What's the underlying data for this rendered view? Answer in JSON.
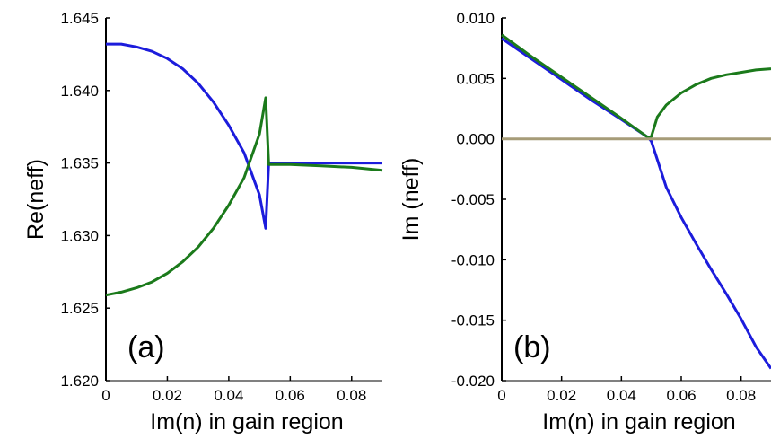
{
  "colors": {
    "series_blue": "#1c1cdc",
    "series_green": "#1b7a1b",
    "zero_line": "#a69c78",
    "axis": "#000000"
  },
  "chart_data": [
    {
      "type": "line",
      "panel_label": "(a)",
      "xlabel": "Im(n) in gain region",
      "ylabel": "Re(neff)",
      "xlim": [
        0,
        0.09
      ],
      "ylim": [
        1.62,
        1.645
      ],
      "xticks": [
        "0",
        "0.02",
        "0.04",
        "0.06",
        "0.08"
      ],
      "xtick_values": [
        0,
        0.02,
        0.04,
        0.06,
        0.08
      ],
      "yticks": [
        "1.620",
        "1.625",
        "1.630",
        "1.635",
        "1.640",
        "1.645"
      ],
      "ytick_values": [
        1.62,
        1.625,
        1.63,
        1.635,
        1.64,
        1.645
      ],
      "series": [
        {
          "color_key": "series_blue",
          "x": [
            0,
            0.005,
            0.01,
            0.015,
            0.02,
            0.025,
            0.03,
            0.035,
            0.04,
            0.045,
            0.05,
            0.052,
            0.053,
            0.06,
            0.07,
            0.08,
            0.09
          ],
          "y": [
            1.6432,
            1.6432,
            1.643,
            1.6427,
            1.6422,
            1.6415,
            1.6405,
            1.6392,
            1.6376,
            1.6357,
            1.6328,
            1.6305,
            1.635,
            1.635,
            1.635,
            1.635,
            1.635
          ]
        },
        {
          "color_key": "series_green",
          "x": [
            0,
            0.005,
            0.01,
            0.015,
            0.02,
            0.025,
            0.03,
            0.035,
            0.04,
            0.045,
            0.05,
            0.052,
            0.053,
            0.06,
            0.07,
            0.08,
            0.09
          ],
          "y": [
            1.6259,
            1.6261,
            1.6264,
            1.6268,
            1.6274,
            1.6282,
            1.6292,
            1.6305,
            1.6321,
            1.634,
            1.637,
            1.6395,
            1.6349,
            1.6349,
            1.6348,
            1.6347,
            1.6345
          ]
        }
      ]
    },
    {
      "type": "line",
      "panel_label": "(b)",
      "xlabel": "Im(n) in gain region",
      "ylabel": "Im (neff)",
      "xlim": [
        0,
        0.09
      ],
      "ylim": [
        -0.02,
        0.01
      ],
      "xticks": [
        "0",
        "0.02",
        "0.04",
        "0.06",
        "0.08"
      ],
      "xtick_values": [
        0,
        0.02,
        0.04,
        0.06,
        0.08
      ],
      "yticks": [
        "-0.020",
        "-0.015",
        "-0.010",
        "-0.005",
        "0.000",
        "0.005",
        "0.010"
      ],
      "ytick_values": [
        -0.02,
        -0.015,
        -0.01,
        -0.005,
        0.0,
        0.005,
        0.01
      ],
      "series": [
        {
          "color_key": "series_blue",
          "x": [
            0,
            0.01,
            0.02,
            0.03,
            0.04,
            0.049,
            0.05,
            0.055,
            0.06,
            0.065,
            0.07,
            0.075,
            0.08,
            0.085,
            0.09
          ],
          "y": [
            0.0083,
            0.0066,
            0.0049,
            0.0032,
            0.0016,
            0.0001,
            -0.0002,
            -0.004,
            -0.0065,
            -0.0087,
            -0.0108,
            -0.0128,
            -0.0149,
            -0.0172,
            -0.019
          ]
        },
        {
          "color_key": "series_green",
          "x": [
            0,
            0.01,
            0.02,
            0.03,
            0.04,
            0.049,
            0.05,
            0.052,
            0.055,
            0.06,
            0.065,
            0.07,
            0.075,
            0.08,
            0.085,
            0.09
          ],
          "y": [
            0.0086,
            0.0068,
            0.0051,
            0.0034,
            0.0017,
            0.0001,
            0.0002,
            0.0018,
            0.0028,
            0.0038,
            0.0045,
            0.005,
            0.0053,
            0.0055,
            0.0057,
            0.0058
          ]
        },
        {
          "color_key": "zero_line",
          "x": [
            0,
            0.09
          ],
          "y": [
            0.0,
            0.0
          ]
        }
      ]
    }
  ]
}
